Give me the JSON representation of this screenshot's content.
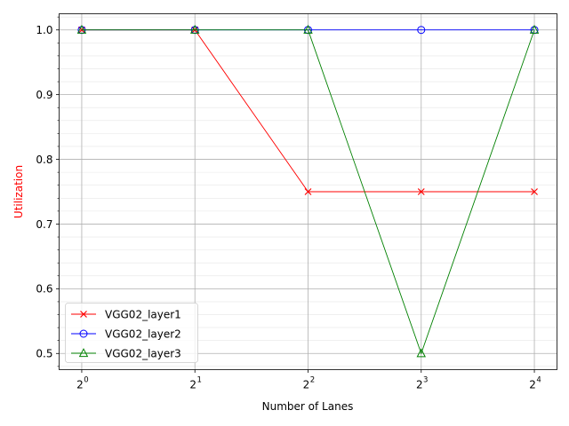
{
  "chart_data": {
    "type": "line",
    "title": "",
    "xlabel": "Number of Lanes",
    "ylabel": "Utilization",
    "ylabel_color": "#ff0000",
    "x_scale": "log2",
    "x": [
      1,
      2,
      4,
      8,
      16
    ],
    "x_tick_labels": [
      {
        "base": "2",
        "exp": "0"
      },
      {
        "base": "2",
        "exp": "1"
      },
      {
        "base": "2",
        "exp": "2"
      },
      {
        "base": "2",
        "exp": "3"
      },
      {
        "base": "2",
        "exp": "4"
      }
    ],
    "xlim": [
      0.8706,
      18.379
    ],
    "y_ticks": [
      0.5,
      0.6,
      0.7,
      0.8,
      0.9,
      1.0
    ],
    "y_tick_labels": [
      "0.5",
      "0.6",
      "0.7",
      "0.8",
      "0.9",
      "1.0"
    ],
    "ylim": [
      0.475,
      1.025
    ],
    "grid": {
      "major": true,
      "minor": true
    },
    "legend_position": "lower-left",
    "series": [
      {
        "name": "VGG02_layer1",
        "color": "#ff0000",
        "marker": "x",
        "values": [
          1.0,
          1.0,
          0.75,
          0.75,
          0.75
        ]
      },
      {
        "name": "VGG02_layer2",
        "color": "#0000ff",
        "marker": "o",
        "values": [
          1.0,
          1.0,
          1.0,
          1.0,
          1.0
        ]
      },
      {
        "name": "VGG02_layer3",
        "color": "#008000",
        "marker": "triangle",
        "values": [
          1.0,
          1.0,
          1.0,
          0.5,
          1.0
        ]
      }
    ]
  }
}
